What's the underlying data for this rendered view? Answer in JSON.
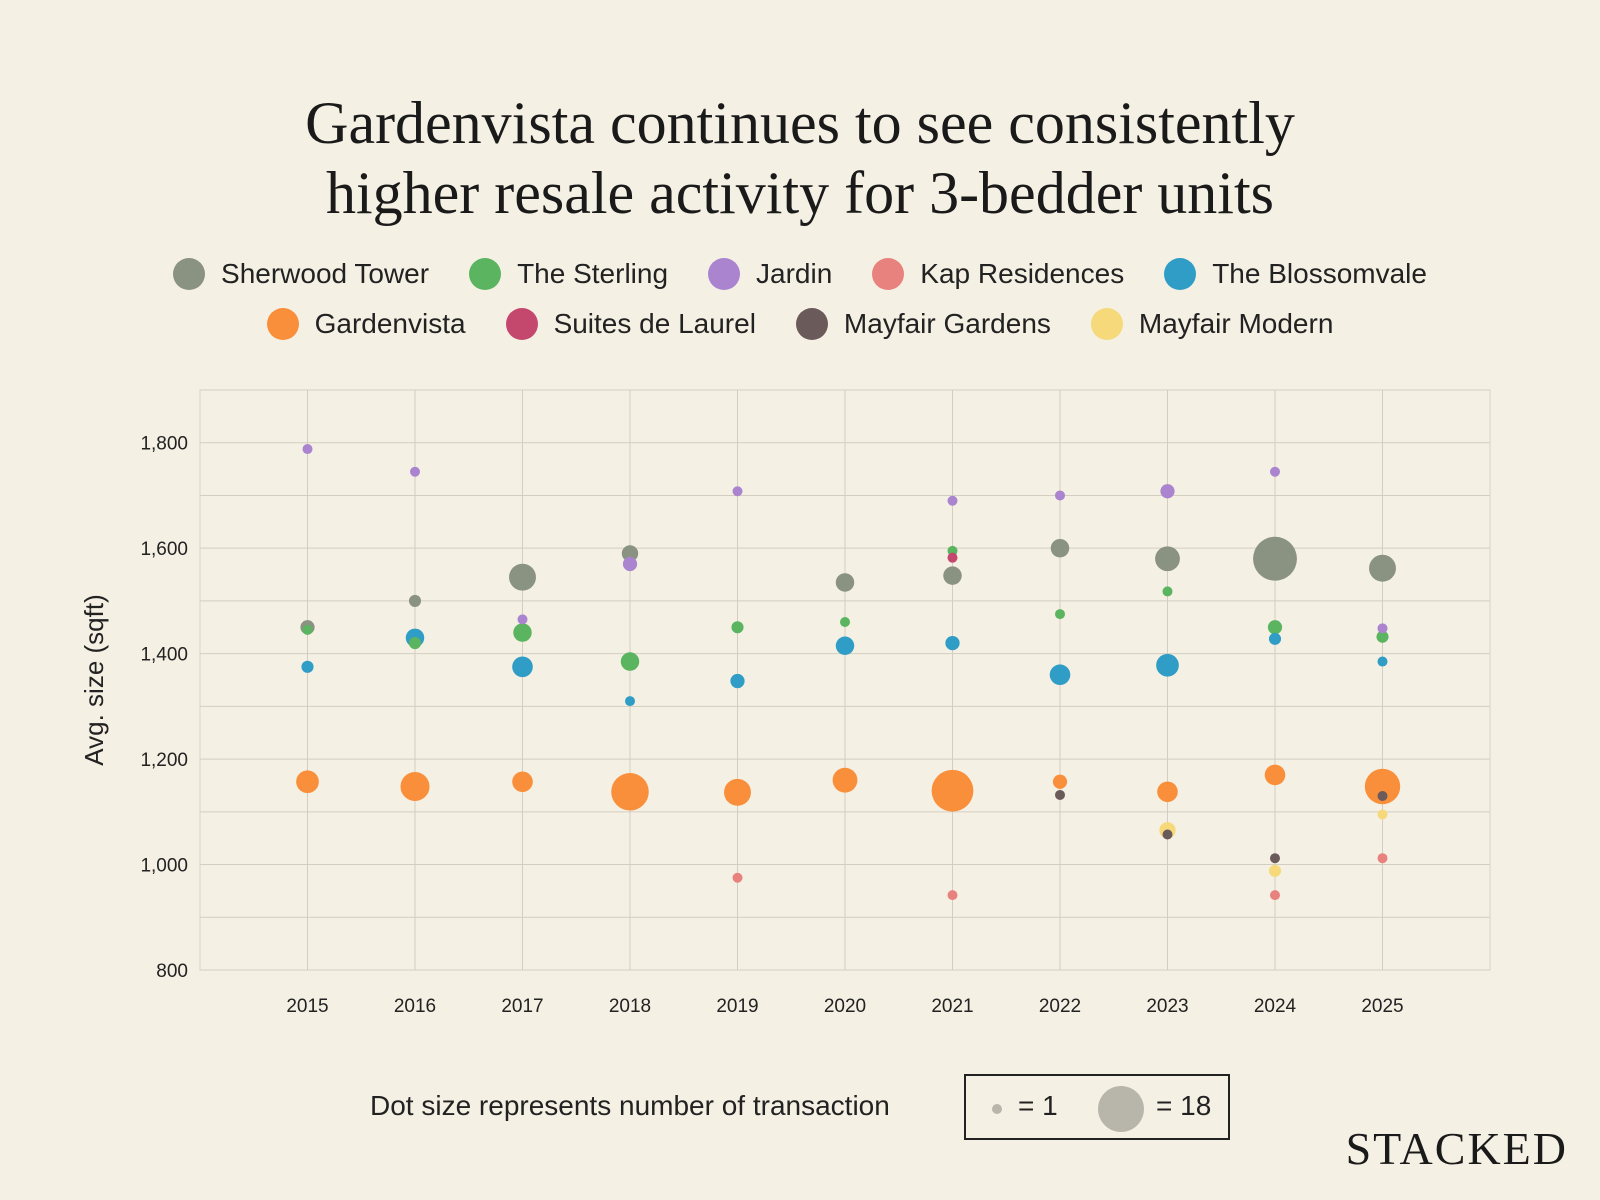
{
  "chart_data": {
    "type": "scatter",
    "title": [
      "Gardenvista continues to see consistently",
      "higher resale activity for 3-bedder units"
    ],
    "ylabel": "Avg. size (sqft)",
    "xlabel": "",
    "x_categories": [
      "2015",
      "2016",
      "2017",
      "2018",
      "2019",
      "2020",
      "2021",
      "2022",
      "2023",
      "2024",
      "2025"
    ],
    "y_ticks": [
      800,
      1000,
      1200,
      1400,
      1600,
      1800
    ],
    "y_tick_labels": [
      "800",
      "1,000",
      "1,200",
      "1,400",
      "1,600",
      "1,800"
    ],
    "ylim": [
      800,
      1900
    ],
    "grid": true,
    "size_legend_text": "Dot size represents number of transaction",
    "size_legend": [
      {
        "label": "= 1",
        "value": 1
      },
      {
        "label": "= 18",
        "value": 18
      }
    ],
    "series": [
      {
        "name": "Sherwood Tower",
        "color": "#8a9381",
        "points": [
          [
            "2015",
            1450,
            3
          ],
          [
            "2016",
            1500,
            2
          ],
          [
            "2017",
            1545,
            9
          ],
          [
            "2018",
            1590,
            4
          ],
          [
            "2020",
            1535,
            5
          ],
          [
            "2021",
            1548,
            5
          ],
          [
            "2022",
            1600,
            5
          ],
          [
            "2023",
            1580,
            8
          ],
          [
            "2024",
            1580,
            17
          ],
          [
            "2025",
            1562,
            9
          ]
        ]
      },
      {
        "name": "The Sterling",
        "color": "#5bb45f",
        "points": [
          [
            "2015",
            1445,
            1
          ],
          [
            "2016",
            1420,
            2
          ],
          [
            "2017",
            1440,
            5
          ],
          [
            "2018",
            1385,
            5
          ],
          [
            "2019",
            1450,
            2
          ],
          [
            "2020",
            1460,
            1
          ],
          [
            "2021",
            1595,
            1
          ],
          [
            "2022",
            1475,
            1
          ],
          [
            "2023",
            1518,
            1
          ],
          [
            "2024",
            1450,
            3
          ],
          [
            "2025",
            1432,
            2
          ]
        ]
      },
      {
        "name": "Jardin",
        "color": "#aa84cf",
        "points": [
          [
            "2015",
            1788,
            1
          ],
          [
            "2016",
            1745,
            1
          ],
          [
            "2017",
            1465,
            1
          ],
          [
            "2018",
            1570,
            3
          ],
          [
            "2019",
            1708,
            1
          ],
          [
            "2021",
            1690,
            1
          ],
          [
            "2022",
            1700,
            1
          ],
          [
            "2023",
            1708,
            3
          ],
          [
            "2024",
            1745,
            1
          ],
          [
            "2025",
            1448,
            1
          ]
        ]
      },
      {
        "name": "Kap Residences",
        "color": "#e8827f",
        "points": [
          [
            "2019",
            975,
            1
          ],
          [
            "2021",
            942,
            1
          ],
          [
            "2024",
            942,
            1
          ],
          [
            "2025",
            1012,
            1
          ]
        ]
      },
      {
        "name": "The Blossomvale",
        "color": "#2f9dc6",
        "points": [
          [
            "2015",
            1375,
            2
          ],
          [
            "2016",
            1430,
            5
          ],
          [
            "2017",
            1375,
            6
          ],
          [
            "2018",
            1310,
            1
          ],
          [
            "2019",
            1348,
            3
          ],
          [
            "2020",
            1415,
            5
          ],
          [
            "2021",
            1420,
            3
          ],
          [
            "2022",
            1360,
            6
          ],
          [
            "2023",
            1378,
            7
          ],
          [
            "2024",
            1428,
            2
          ],
          [
            "2025",
            1385,
            1
          ]
        ]
      },
      {
        "name": "Gardenvista",
        "color": "#fa8f3b",
        "points": [
          [
            "2015",
            1157,
            7
          ],
          [
            "2016",
            1148,
            10
          ],
          [
            "2017",
            1157,
            6
          ],
          [
            "2018",
            1138,
            14
          ],
          [
            "2019",
            1137,
            9
          ],
          [
            "2020",
            1160,
            8
          ],
          [
            "2021",
            1140,
            16
          ],
          [
            "2022",
            1157,
            3
          ],
          [
            "2023",
            1138,
            6
          ],
          [
            "2024",
            1170,
            6
          ],
          [
            "2025",
            1148,
            13
          ]
        ]
      },
      {
        "name": "Suites de Laurel",
        "color": "#c4486e",
        "points": [
          [
            "2021",
            1582,
            1
          ]
        ]
      },
      {
        "name": "Mayfair Gardens",
        "color": "#6b5a5a",
        "points": [
          [
            "2022",
            1132,
            1
          ],
          [
            "2023",
            1057,
            1
          ],
          [
            "2024",
            1012,
            1
          ],
          [
            "2025",
            1130,
            1
          ]
        ]
      },
      {
        "name": "Mayfair Modern",
        "color": "#f6d97a",
        "points": [
          [
            "2023",
            1065,
            4
          ],
          [
            "2024",
            988,
            2
          ],
          [
            "2025",
            1095,
            1
          ]
        ]
      }
    ]
  },
  "brand": "STACKED"
}
